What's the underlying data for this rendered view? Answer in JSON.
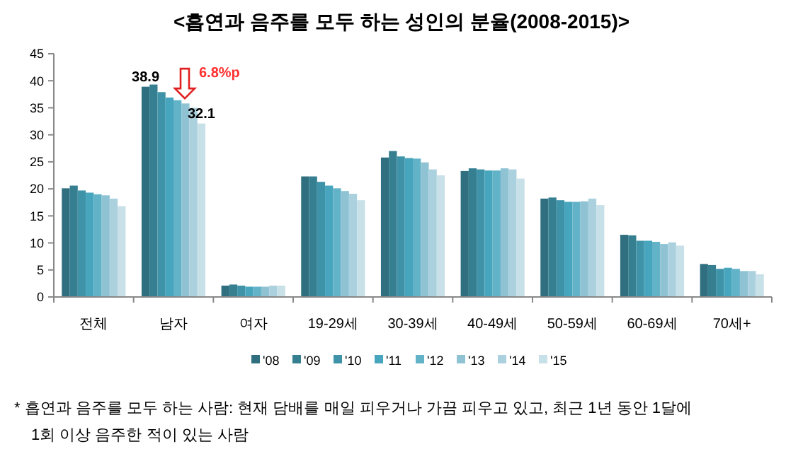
{
  "chart_data": {
    "type": "bar",
    "title": "<흡연과 음주를 모두 하는 성인의 분율(2008-2015)>",
    "categories": [
      "전체",
      "남자",
      "여자",
      "19-29세",
      "30-39세",
      "40-49세",
      "50-59세",
      "60-69세",
      "70세+"
    ],
    "series": [
      {
        "name": "'08",
        "color": "#2f6f7f",
        "values": [
          20.1,
          38.9,
          2.1,
          22.3,
          25.8,
          23.3,
          18.2,
          11.5,
          6.1
        ],
        "value_labels": [
          null,
          "38.9",
          null,
          null,
          null,
          null,
          null,
          null,
          null
        ]
      },
      {
        "name": "'09",
        "color": "#357f91",
        "values": [
          20.6,
          39.3,
          2.3,
          22.3,
          27.0,
          23.8,
          18.4,
          11.4,
          5.9
        ]
      },
      {
        "name": "'10",
        "color": "#3e93a8",
        "values": [
          19.7,
          37.9,
          2.1,
          21.3,
          26.0,
          23.6,
          17.9,
          10.4,
          5.2
        ]
      },
      {
        "name": "'11",
        "color": "#47a5bd",
        "values": [
          19.3,
          36.9,
          1.9,
          20.6,
          25.7,
          23.4,
          17.6,
          10.4,
          5.4
        ]
      },
      {
        "name": "'12",
        "color": "#62b3c8",
        "values": [
          19.0,
          36.4,
          1.9,
          20.1,
          25.6,
          23.4,
          17.6,
          10.2,
          5.2
        ]
      },
      {
        "name": "'13",
        "color": "#8fc3d4",
        "values": [
          18.8,
          35.8,
          1.9,
          19.6,
          24.9,
          23.8,
          17.7,
          9.8,
          4.8
        ]
      },
      {
        "name": "'14",
        "color": "#abd1de",
        "values": [
          18.2,
          35.0,
          2.1,
          19.1,
          23.6,
          23.6,
          18.2,
          10.1,
          4.8
        ]
      },
      {
        "name": "'15",
        "color": "#c8e0e8",
        "values": [
          16.8,
          32.1,
          2.1,
          17.9,
          22.5,
          21.9,
          17.0,
          9.5,
          4.2
        ],
        "value_labels": [
          null,
          "32.1",
          null,
          null,
          null,
          null,
          null,
          null,
          null
        ]
      }
    ],
    "ylim": [
      0,
      45
    ],
    "yticks": [
      0,
      5,
      10,
      15,
      20,
      25,
      30,
      35,
      40,
      45
    ],
    "grid": false,
    "legend": "bottom",
    "annotations": [
      {
        "text": "6.8%p",
        "x": "남자",
        "y": 37
      },
      "* 흡연과 음주를 모두 하는 사람: 현재 담배를 매일 피우거나 가끔 피우고 있고, 최근 1년 동안 1달에 1회 이상 음주한 적이 있는 사람"
    ]
  }
}
